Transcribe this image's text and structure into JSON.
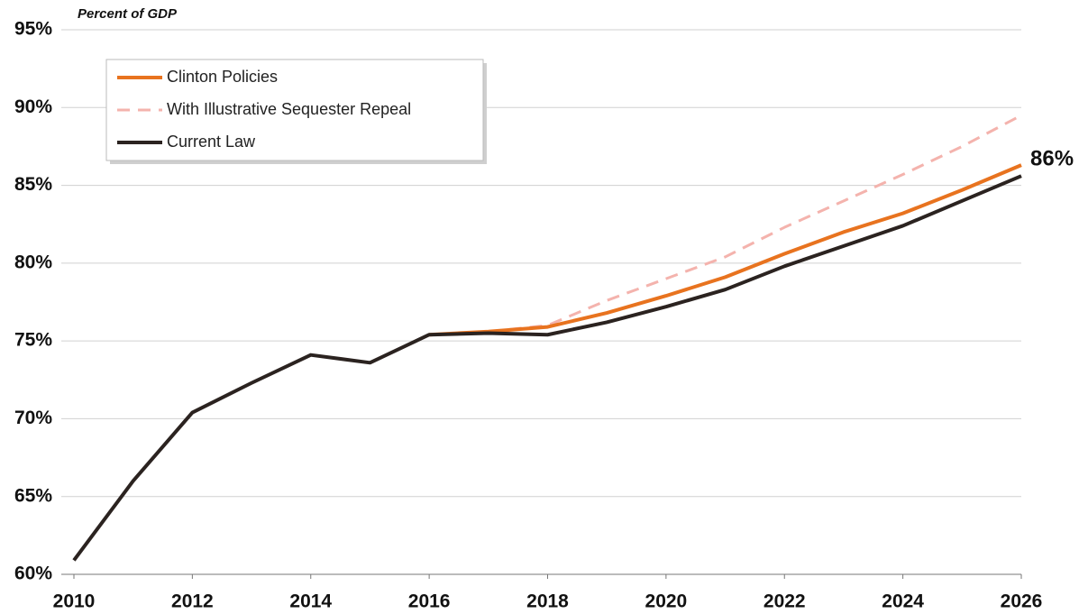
{
  "chart_data": {
    "type": "line",
    "y_axis_label": "Percent of GDP",
    "x": [
      2010,
      2011,
      2012,
      2013,
      2014,
      2015,
      2016,
      2017,
      2018,
      2019,
      2020,
      2021,
      2022,
      2023,
      2024,
      2025,
      2026
    ],
    "xlim": [
      2010,
      2026
    ],
    "xticks": [
      2010,
      2012,
      2014,
      2016,
      2018,
      2020,
      2022,
      2024,
      2026
    ],
    "ylim": [
      60,
      95
    ],
    "yticks": [
      {
        "value": 60,
        "label": "60%"
      },
      {
        "value": 65,
        "label": "65%"
      },
      {
        "value": 70,
        "label": "70%"
      },
      {
        "value": 75,
        "label": "75%"
      },
      {
        "value": 80,
        "label": "80%"
      },
      {
        "value": 85,
        "label": "85%"
      },
      {
        "value": 90,
        "label": "90%"
      },
      {
        "value": 95,
        "label": "95%"
      }
    ],
    "grid": true,
    "legend": "upper left",
    "series": [
      {
        "name": "With Illustrative Sequester Repeal",
        "color": "#f4b3ad",
        "dash": true,
        "values": [
          null,
          null,
          null,
          null,
          null,
          null,
          null,
          75.6,
          76.0,
          77.6,
          79.0,
          80.4,
          82.3,
          84.0,
          85.7,
          87.5,
          89.5
        ]
      },
      {
        "name": "Clinton Policies",
        "color": "#e8731f",
        "values": [
          null,
          null,
          null,
          null,
          null,
          null,
          75.4,
          75.6,
          75.9,
          76.8,
          77.9,
          79.1,
          80.6,
          82.0,
          83.2,
          84.7,
          86.3
        ],
        "value_labels": [
          null,
          null,
          null,
          null,
          null,
          null,
          null,
          null,
          null,
          null,
          null,
          null,
          null,
          null,
          null,
          null,
          "86%"
        ]
      },
      {
        "name": "Current Law",
        "color": "#2b2320",
        "values": [
          60.9,
          66.0,
          70.4,
          72.3,
          74.1,
          73.6,
          75.4,
          75.5,
          75.4,
          76.2,
          77.2,
          78.3,
          79.8,
          81.1,
          82.4,
          84.0,
          85.6
        ]
      }
    ],
    "legend_order": [
      1,
      0,
      2
    ]
  }
}
